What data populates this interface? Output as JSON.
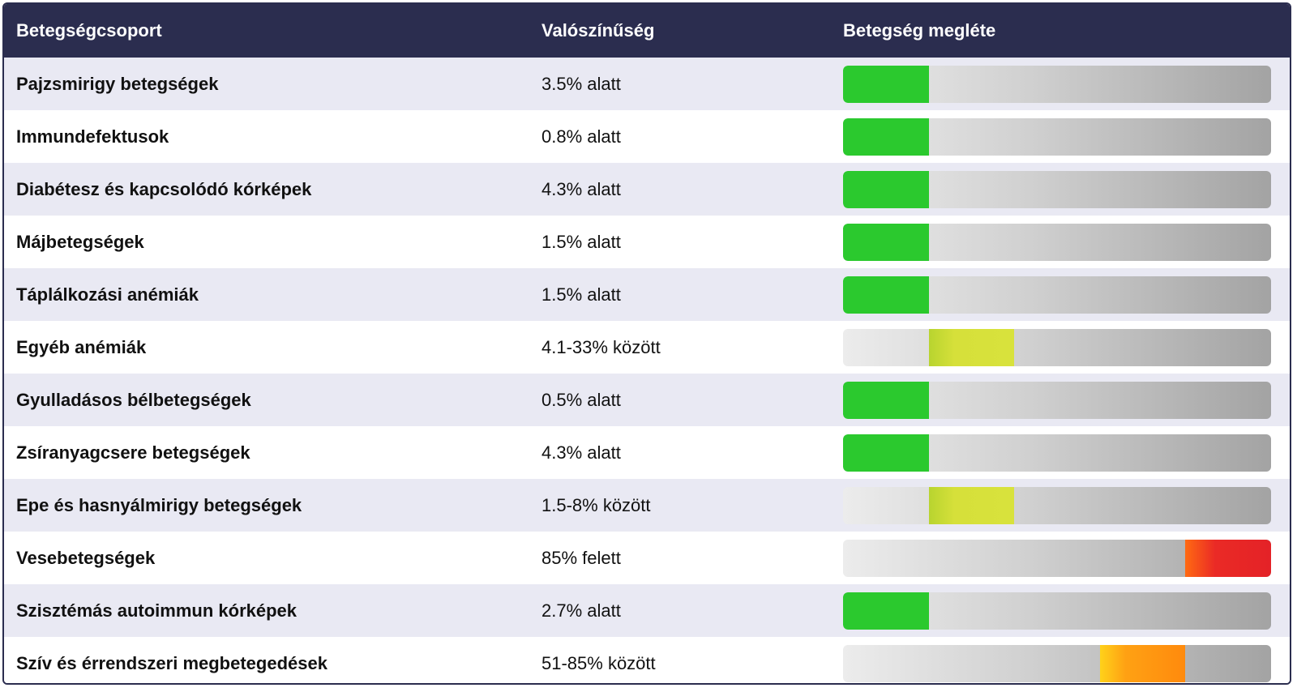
{
  "header": {
    "col_group": "Betegségcsoport",
    "col_probability": "Valószínűség",
    "col_presence": "Betegség megléte"
  },
  "colors": {
    "header_bg": "#2b2d4f",
    "row_alt_bg": "#e9e9f3",
    "low": "#2bc92e",
    "moderate": "#d6e03a",
    "high": "#ff9410",
    "very_high": "#e42227"
  },
  "rows": [
    {
      "group": "Pajzsmirigy betegségek",
      "probability": "3.5% alatt",
      "level": "low",
      "segment": 1
    },
    {
      "group": "Immundefektusok",
      "probability": "0.8% alatt",
      "level": "low",
      "segment": 1
    },
    {
      "group": "Diabétesz és kapcsolódó kórképek",
      "probability": "4.3% alatt",
      "level": "low",
      "segment": 1
    },
    {
      "group": "Májbetegségek",
      "probability": "1.5% alatt",
      "level": "low",
      "segment": 1
    },
    {
      "group": "Táplálkozási anémiák",
      "probability": "1.5% alatt",
      "level": "low",
      "segment": 1
    },
    {
      "group": "Egyéb anémiák",
      "probability": "4.1-33% között",
      "level": "moderate",
      "segment": 2
    },
    {
      "group": "Gyulladásos bélbetegségek",
      "probability": "0.5% alatt",
      "level": "low",
      "segment": 1
    },
    {
      "group": "Zsíranyagcsere betegségek",
      "probability": "4.3% alatt",
      "level": "low",
      "segment": 1
    },
    {
      "group": "Epe és hasnyálmirigy betegségek",
      "probability": "1.5-8% között",
      "level": "moderate",
      "segment": 2
    },
    {
      "group": "Vesebetegségek",
      "probability": "85% felett",
      "level": "very_high",
      "segment": 5
    },
    {
      "group": "Szisztémás autoimmun kórképek",
      "probability": "2.7% alatt",
      "level": "low",
      "segment": 1
    },
    {
      "group": "Szív és érrendszeri megbetegedések",
      "probability": "51-85% között",
      "level": "high",
      "segment": 4
    }
  ]
}
